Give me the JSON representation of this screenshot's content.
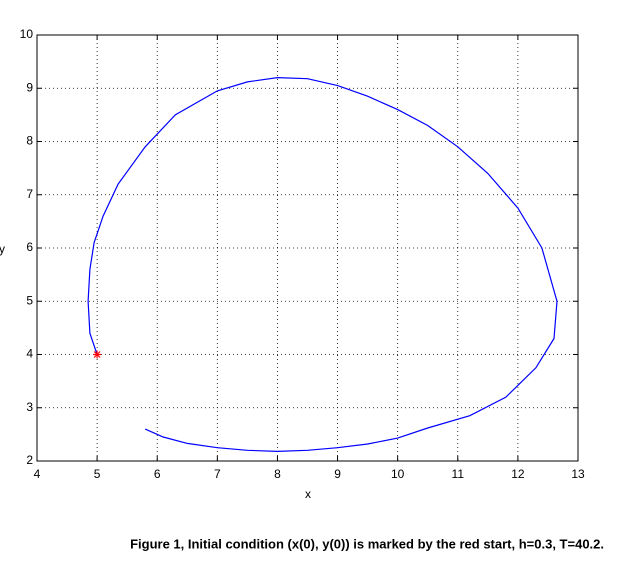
{
  "chart_data": {
    "type": "line",
    "xlabel": "x",
    "ylabel": "y",
    "xlim": [
      4,
      13
    ],
    "ylim": [
      2,
      10
    ],
    "xticks": [
      4,
      5,
      6,
      7,
      8,
      9,
      10,
      11,
      12,
      13
    ],
    "yticks": [
      2,
      3,
      4,
      5,
      6,
      7,
      8,
      9,
      10
    ],
    "grid": true,
    "series": [
      {
        "color": "#0000ff",
        "x": [
          5,
          4.88,
          4.85,
          4.88,
          4.95,
          5.1,
          5.35,
          5.8,
          6.3,
          7,
          7.5,
          8,
          8.5,
          9,
          9.5,
          10,
          10.5,
          11,
          11.5,
          12,
          12.4,
          12.65,
          12.6,
          12.3,
          11.8,
          11.2,
          10.5,
          10,
          9.5,
          9,
          8.5,
          8,
          7.5,
          7,
          6.5,
          6.1,
          5.8
        ],
        "y": [
          4,
          4.4,
          5,
          5.6,
          6.1,
          6.6,
          7.2,
          7.9,
          8.5,
          8.95,
          9.12,
          9.2,
          9.18,
          9.05,
          8.85,
          8.6,
          8.3,
          7.9,
          7.4,
          6.75,
          6,
          5,
          4.3,
          3.75,
          3.2,
          2.85,
          2.62,
          2.43,
          2.32,
          2.25,
          2.2,
          2.18,
          2.2,
          2.25,
          2.33,
          2.45,
          2.6
        ]
      }
    ],
    "marker": {
      "x": 5,
      "y": 4,
      "color": "#ff0000"
    },
    "caption": "Figure 1, Initial condition (x(0), y(0)) is marked by the red start, h=0.3, T=40.2."
  }
}
